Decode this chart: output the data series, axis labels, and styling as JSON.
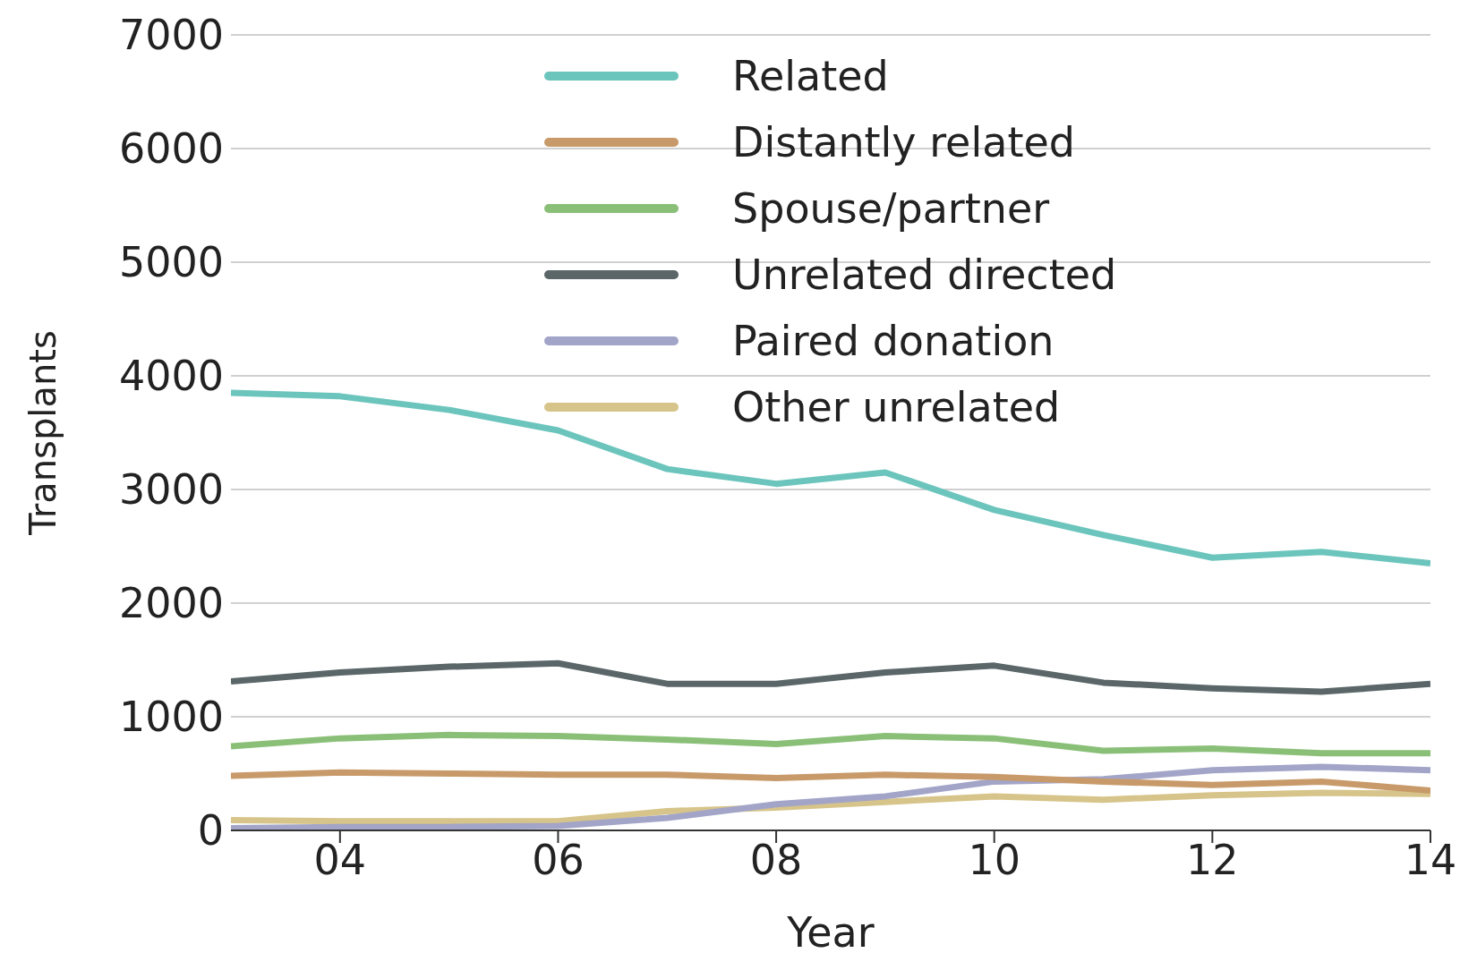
{
  "chart_data": {
    "type": "line",
    "xlabel": "Year",
    "ylabel": "Transplants",
    "x": [
      2003,
      2004,
      2005,
      2006,
      2007,
      2008,
      2009,
      2010,
      2011,
      2012,
      2013,
      2014
    ],
    "xlim": [
      2003,
      2014
    ],
    "xticks": [
      {
        "value": 2004,
        "label": "04"
      },
      {
        "value": 2006,
        "label": "06"
      },
      {
        "value": 2008,
        "label": "08"
      },
      {
        "value": 2010,
        "label": "10"
      },
      {
        "value": 2012,
        "label": "12"
      },
      {
        "value": 2014,
        "label": "14"
      }
    ],
    "ylim": [
      0,
      7000
    ],
    "yticks": [
      0,
      1000,
      2000,
      3000,
      4000,
      5000,
      6000,
      7000
    ],
    "grid": "y",
    "legend": "top",
    "marker": "none",
    "line_style": "solid",
    "series": [
      {
        "name": "Related",
        "color": "#6cc5bd",
        "values": [
          3850,
          3820,
          3700,
          3520,
          3180,
          3050,
          3150,
          2820,
          2600,
          2400,
          2450,
          2350
        ]
      },
      {
        "name": "Distantly related",
        "color": "#c89a6a",
        "values": [
          480,
          510,
          500,
          490,
          490,
          460,
          490,
          470,
          430,
          400,
          430,
          350
        ]
      },
      {
        "name": "Spouse/partner",
        "color": "#8abf78",
        "values": [
          740,
          810,
          840,
          830,
          800,
          760,
          830,
          810,
          700,
          720,
          680,
          680
        ]
      },
      {
        "name": "Unrelated directed",
        "color": "#5a6668",
        "values": [
          1310,
          1390,
          1440,
          1470,
          1290,
          1290,
          1390,
          1450,
          1300,
          1250,
          1220,
          1290
        ]
      },
      {
        "name": "Paired donation",
        "color": "#a3a5c8",
        "values": [
          20,
          30,
          30,
          40,
          110,
          230,
          300,
          430,
          450,
          530,
          560,
          530
        ]
      },
      {
        "name": "Other unrelated",
        "color": "#d6c48a",
        "values": [
          90,
          80,
          80,
          80,
          170,
          200,
          250,
          300,
          270,
          310,
          330,
          320
        ]
      }
    ]
  }
}
